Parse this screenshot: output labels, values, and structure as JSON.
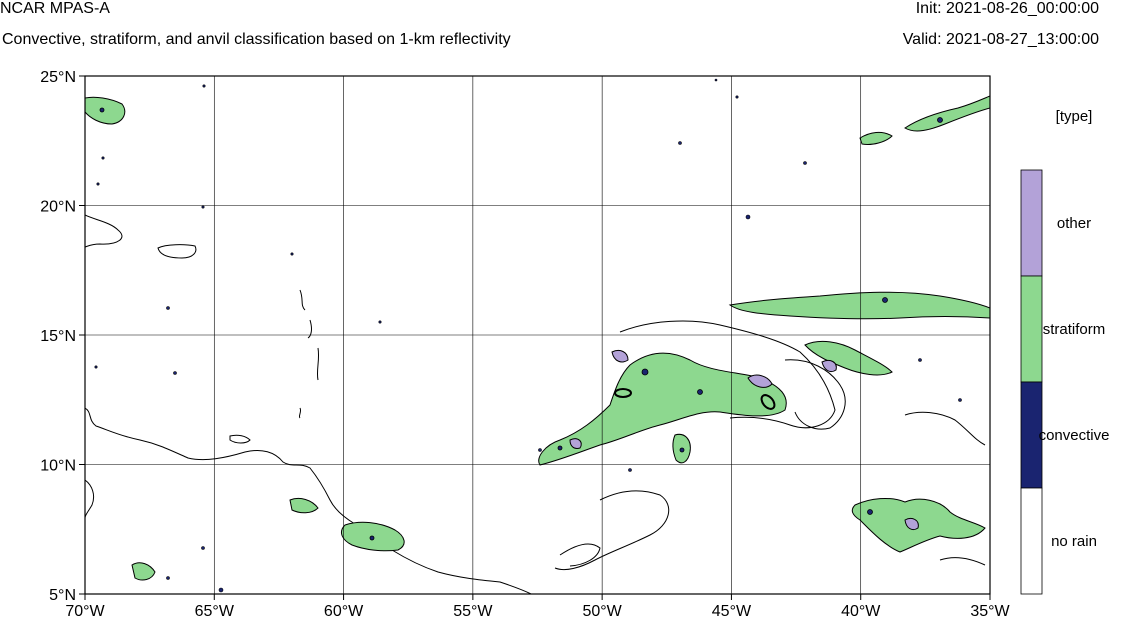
{
  "header": {
    "title": "NCAR MPAS-A",
    "subtitle": "Convective, stratiform, and anvil classification based on 1-km reflectivity",
    "init": "Init: 2021-08-26_00:00:00",
    "valid": "Valid: 2021-08-27_13:00:00"
  },
  "map": {
    "lon_range": [
      -70,
      -35
    ],
    "lat_range": [
      5,
      25
    ],
    "x_ticks": [
      "70°W",
      "65°W",
      "60°W",
      "55°W",
      "50°W",
      "45°W",
      "40°W",
      "35°W"
    ],
    "y_ticks": [
      "25°N",
      "20°N",
      "15°N",
      "10°N",
      "5°N"
    ],
    "grid": true
  },
  "legend": {
    "title": "[type]",
    "items": [
      {
        "label": "other",
        "color": "#b3a2d8"
      },
      {
        "label": "stratiform",
        "color": "#8dd88f"
      },
      {
        "label": "convective",
        "color": "#1a2470"
      },
      {
        "label": "no rain",
        "color": "#ffffff"
      }
    ]
  }
}
